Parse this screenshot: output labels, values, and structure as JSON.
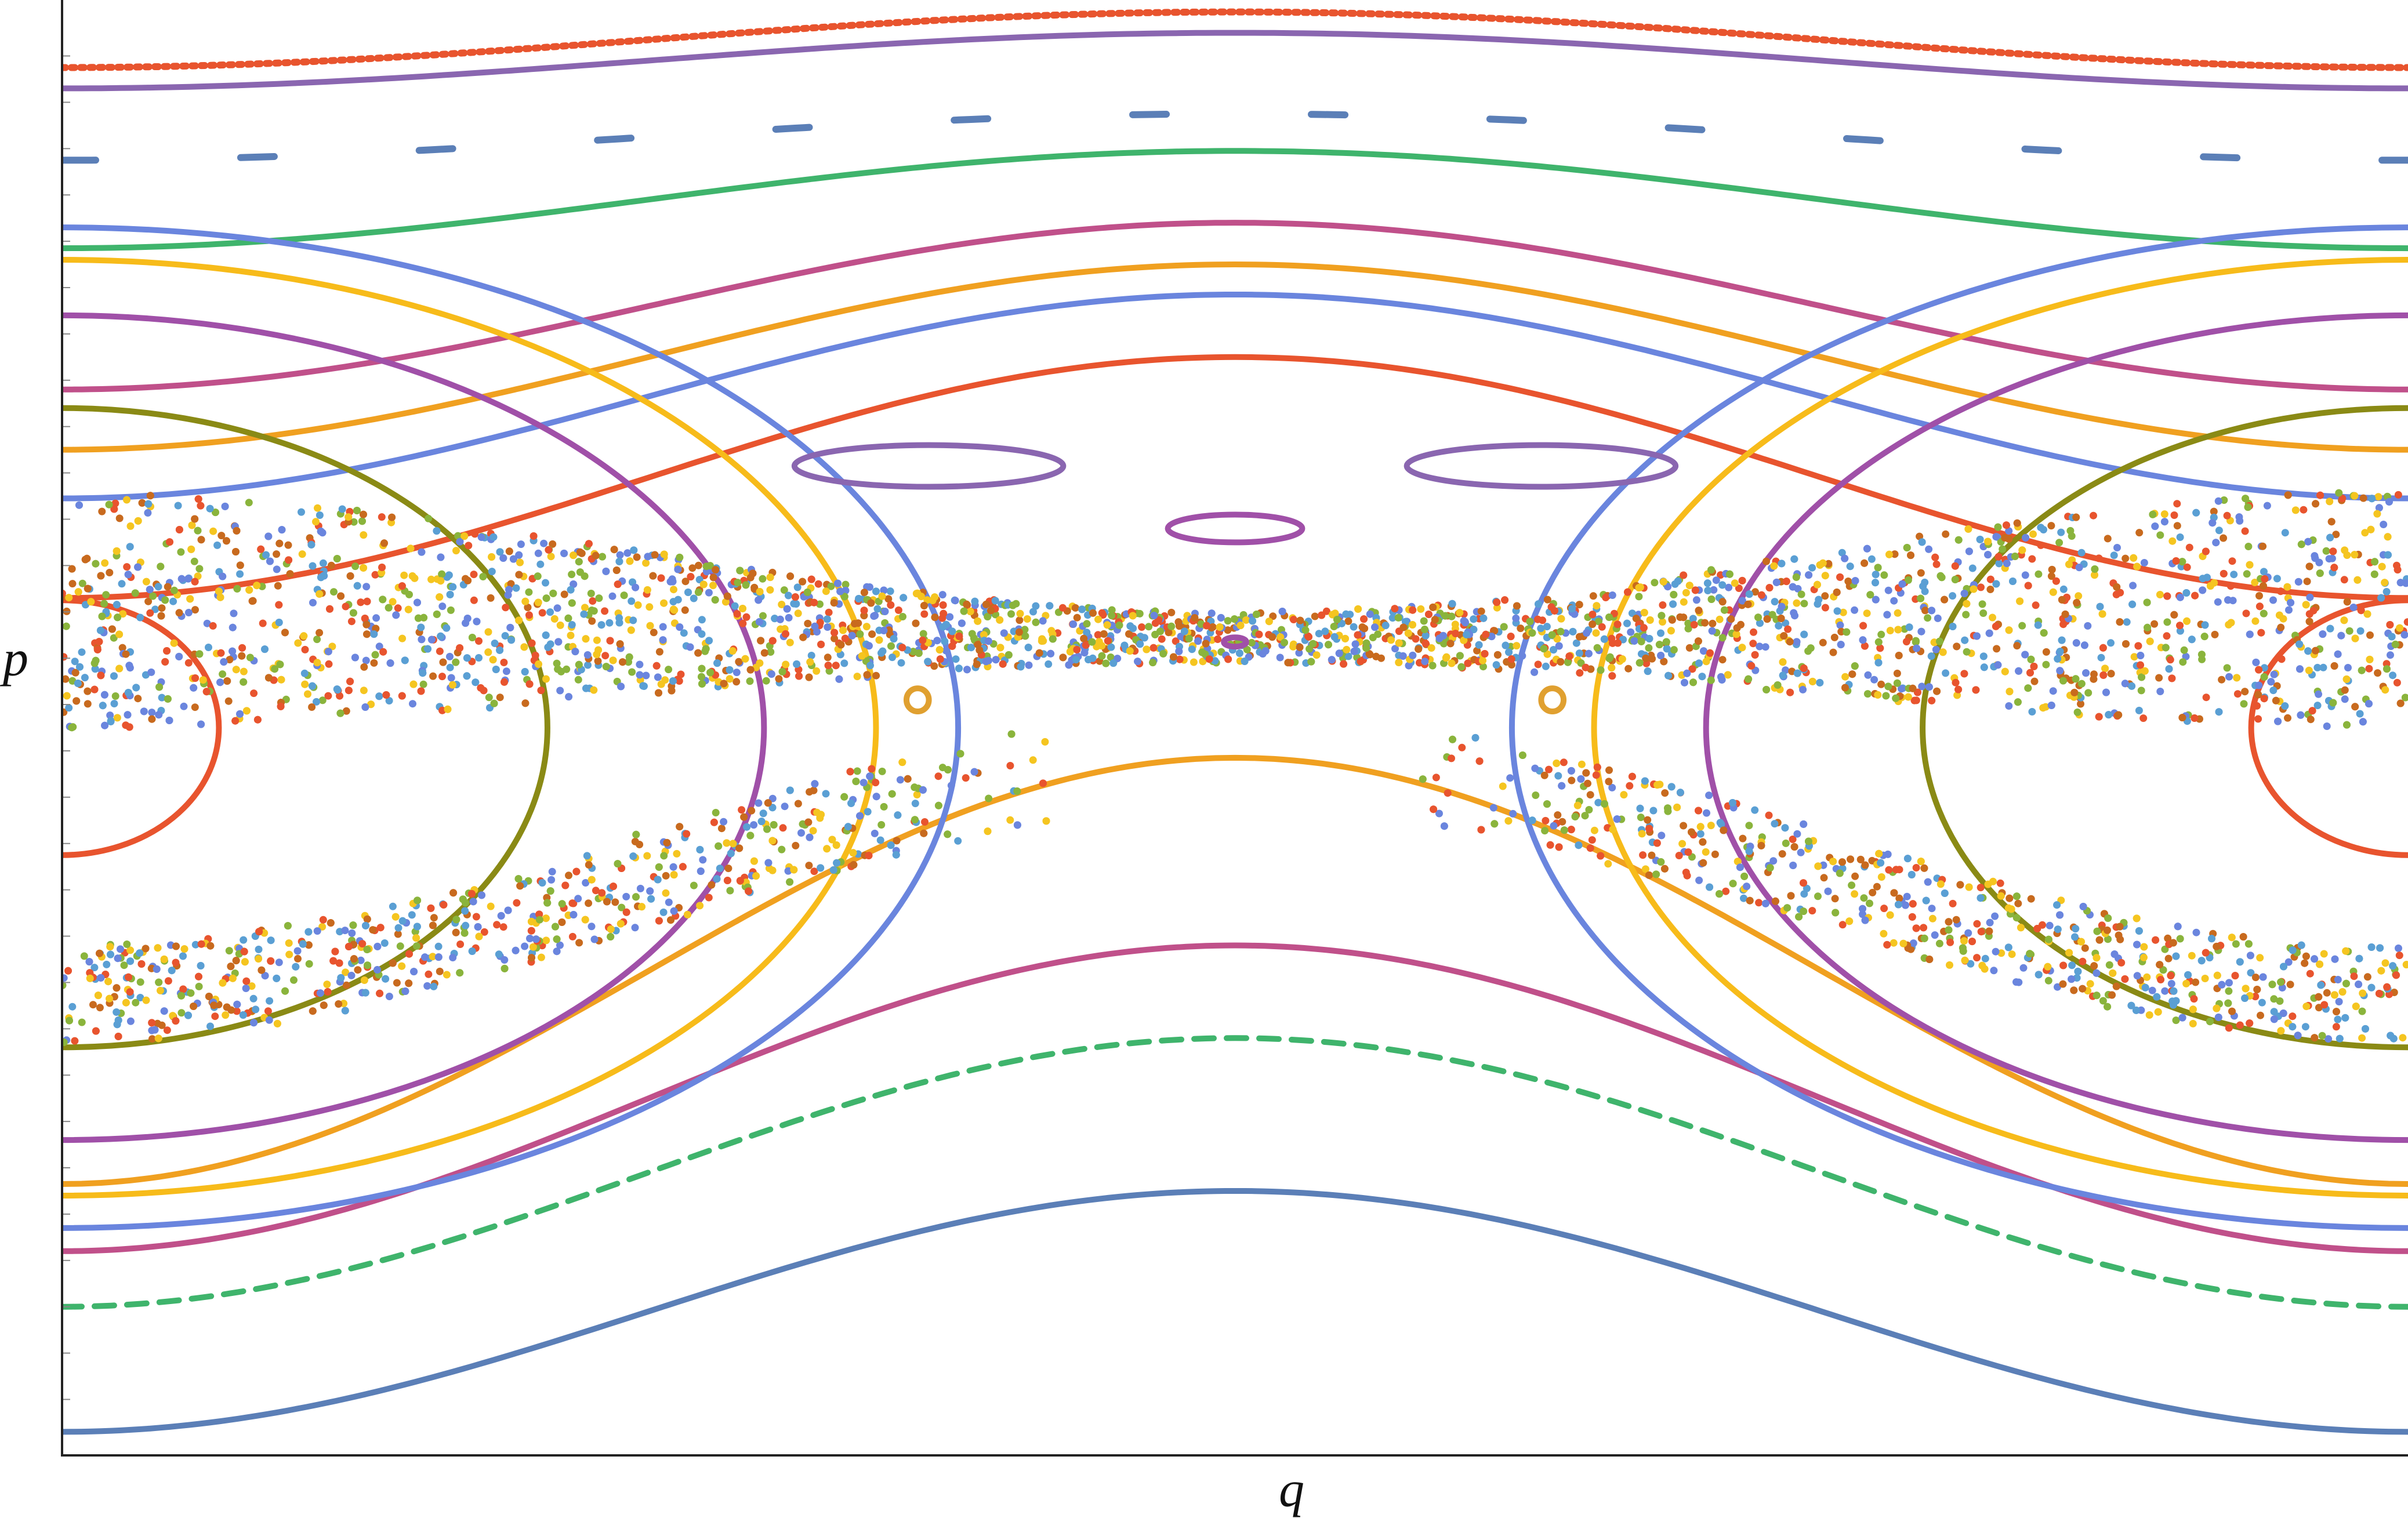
{
  "chart_data": {
    "type": "scatter",
    "title": "",
    "xlabel": "q",
    "ylabel": "p",
    "xlim": [
      -3.14159,
      3.14159
    ],
    "ylim": [
      -3.14159,
      3.14159
    ],
    "grid": false,
    "legend": "none",
    "y_minor_ticks": [
      2.9,
      2.7,
      2.5,
      2.3,
      2.1,
      1.9,
      1.7,
      1.5,
      1.3,
      1.1,
      0.9,
      0.7,
      0.5,
      0.3,
      0.1,
      -0.1,
      -0.3,
      -0.5,
      -0.7,
      -0.9,
      -1.1,
      -1.3,
      -1.5,
      -1.7,
      -1.9,
      -2.1,
      -2.3,
      -2.5,
      -2.7,
      -2.9
    ],
    "series": [
      {
        "kind": "rotational",
        "color": "#5b7fb7",
        "mean": -2.52,
        "amp": 0.52,
        "dash": "solid",
        "width": 10
      },
      {
        "kind": "rotational",
        "color": "#3fb46c",
        "mean": -1.92,
        "amp": 0.58,
        "dash": "dashed",
        "width": 10
      },
      {
        "kind": "rotational",
        "color": "#c0508a",
        "mean": -1.6,
        "amp": 0.66,
        "dash": "solid",
        "width": 10
      },
      {
        "kind": "rotational",
        "color": "#f0a020",
        "mean": -1.05,
        "amp": 0.92,
        "dash": "solid",
        "width": 10
      },
      {
        "kind": "rotational",
        "color": "#3fb46c",
        "mean": 2.28,
        "amp": 0.21,
        "dash": "solid",
        "width": 10
      },
      {
        "kind": "rotational",
        "color": "#c0508a",
        "mean": 1.82,
        "amp": 0.36,
        "dash": "solid",
        "width": 10
      },
      {
        "kind": "rotational",
        "color": "#f0a020",
        "mean": 1.6,
        "amp": 0.4,
        "dash": "solid",
        "width": 10
      },
      {
        "kind": "rotational",
        "color": "#6a85de",
        "mean": 1.43,
        "amp": 0.44,
        "dash": "solid",
        "width": 10
      },
      {
        "kind": "rotational",
        "color": "#e8542e",
        "mean": 1.08,
        "amp": 0.52,
        "dash": "solid",
        "width": 10
      },
      {
        "kind": "rotational",
        "color": "#8a66b0",
        "mean": 2.88,
        "amp": 0.12,
        "dash": "solid",
        "width": 10
      },
      {
        "kind": "rotational",
        "color": "#5b7fb7",
        "mean": 2.55,
        "amp": 0.1,
        "dash": "longdash",
        "width": 12
      },
      {
        "kind": "rotational",
        "color": "#e8542e",
        "mean": 2.97,
        "amp": 0.12,
        "dash": "dotted",
        "width": 12
      },
      {
        "kind": "libration",
        "color": "#e8542e",
        "a": 0.42,
        "b": 0.55
      },
      {
        "kind": "libration",
        "color": "#8a8a15",
        "a": 1.3,
        "b": 1.38
      },
      {
        "kind": "libration",
        "color": "#a050a8",
        "a": 1.88,
        "b": 1.78
      },
      {
        "kind": "libration",
        "color": "#f7bb1a",
        "a": 2.18,
        "b": 2.02
      },
      {
        "kind": "libration",
        "color": "#6a85de",
        "a": 2.4,
        "b": 2.16
      },
      {
        "kind": "chaotic",
        "colors": [
          "#c86a1e",
          "#f5c520",
          "#5a9fd4",
          "#e8542e",
          "#8ab43c",
          "#6a85de"
        ],
        "points": 6200
      },
      {
        "kind": "island",
        "color": "#8a66b0",
        "cx": -0.82,
        "cy": 1.13,
        "rx": 0.36,
        "ry": 0.09
      },
      {
        "kind": "island",
        "color": "#8a66b0",
        "cx": 0.82,
        "cy": 1.13,
        "rx": 0.36,
        "ry": 0.09
      },
      {
        "kind": "island",
        "color": "#a050a8",
        "cx": 0.0,
        "cy": 0.86,
        "rx": 0.18,
        "ry": 0.06
      },
      {
        "kind": "island",
        "color": "#a050a8",
        "cx": 0.0,
        "cy": 0.37,
        "rx": 0.03,
        "ry": 0.02
      },
      {
        "kind": "island",
        "color": "#e0a030",
        "cx": -0.85,
        "cy": 0.12,
        "rx": 0.03,
        "ry": 0.05
      },
      {
        "kind": "island",
        "color": "#e0a030",
        "cx": 0.85,
        "cy": 0.12,
        "rx": 0.03,
        "ry": 0.05
      }
    ]
  }
}
